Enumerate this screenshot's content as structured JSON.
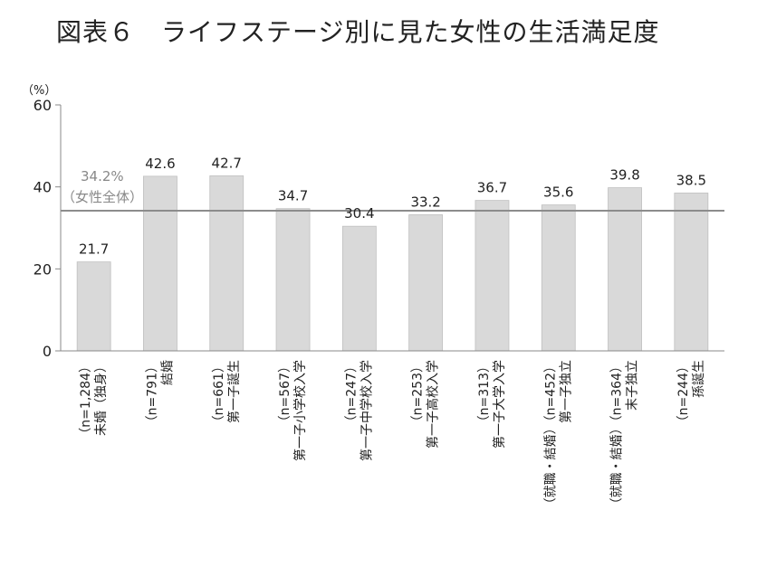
{
  "title": "図表６　ライフステージ別に見た女性の生活満足度",
  "chart_data": {
    "type": "bar",
    "ylabel_unit": "（%）",
    "ylim": [
      0,
      60
    ],
    "yticks": [
      0,
      20,
      40,
      60
    ],
    "grid": false,
    "categories": [
      [
        "未婚（独身）",
        "（n=1,284）"
      ],
      [
        "結婚",
        "（n=791）"
      ],
      [
        "第一子誕生",
        "（n=661）"
      ],
      [
        "第一子小学校入学",
        "（n=567）"
      ],
      [
        "第一子中学校入学",
        "（n=247）"
      ],
      [
        "第一子高校入学",
        "（n=253）"
      ],
      [
        "第一子大学入学",
        "（n=313）"
      ],
      [
        "第一子独立",
        "（就職・結婚）（n=452）"
      ],
      [
        "末子独立",
        "（就職・結婚）（n=364）"
      ],
      [
        "孫誕生",
        "（n=244）"
      ]
    ],
    "values": [
      21.7,
      42.6,
      42.7,
      34.7,
      30.4,
      33.2,
      36.7,
      35.6,
      39.8,
      38.5
    ],
    "reference_line": {
      "value": 34.2,
      "label_value": "34.2%",
      "label_text": "（女性全体）"
    },
    "colors": {
      "bar": "#d9d9d9",
      "bar_edge": "#bfbfbf",
      "ref_line": "#8c8c8c",
      "axis": "#888888"
    }
  }
}
